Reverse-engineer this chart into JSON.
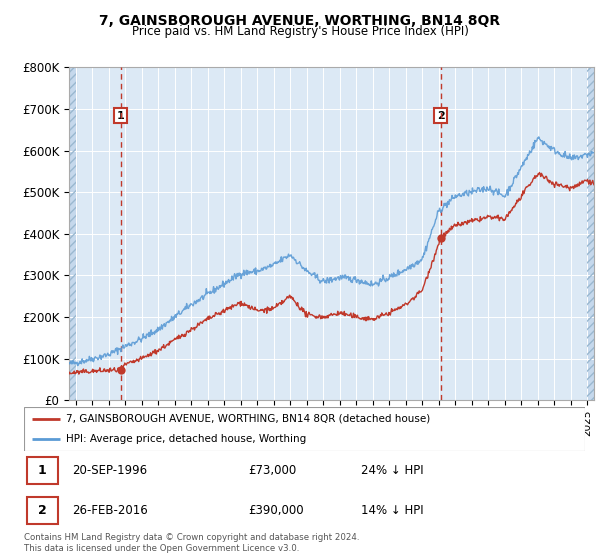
{
  "title": "7, GAINSBOROUGH AVENUE, WORTHING, BN14 8QR",
  "subtitle": "Price paid vs. HM Land Registry's House Price Index (HPI)",
  "ylim": [
    0,
    800000
  ],
  "xlim_start": 1993.6,
  "xlim_end": 2025.4,
  "plot_bg": "#dce9f5",
  "hatch_color": "#c5d8ec",
  "grid_color": "#ffffff",
  "line_color_hpi": "#5b9bd5",
  "line_color_price": "#c0392b",
  "sale1_x": 1996.72,
  "sale1_y": 73000,
  "sale2_x": 2016.12,
  "sale2_y": 390000,
  "legend_line1": "7, GAINSBOROUGH AVENUE, WORTHING, BN14 8QR (detached house)",
  "legend_line2": "HPI: Average price, detached house, Worthing",
  "annotation1_date": "20-SEP-1996",
  "annotation1_price": "£73,000",
  "annotation1_hpi": "24% ↓ HPI",
  "annotation2_date": "26-FEB-2016",
  "annotation2_price": "£390,000",
  "annotation2_hpi": "14% ↓ HPI",
  "footer": "Contains HM Land Registry data © Crown copyright and database right 2024.\nThis data is licensed under the Open Government Licence v3.0."
}
